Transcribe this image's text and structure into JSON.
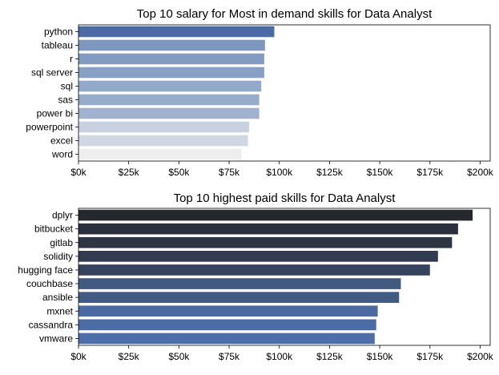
{
  "chart_data": [
    {
      "type": "bar",
      "orientation": "horizontal",
      "title": "Top 10 salary for Most in demand skills for Data Analyst",
      "xlabel": "",
      "ylabel": "",
      "xlim": [
        0,
        205000
      ],
      "xticks": [
        {
          "value": 0,
          "label": "$0k"
        },
        {
          "value": 25000,
          "label": "$25k"
        },
        {
          "value": 50000,
          "label": "$50k"
        },
        {
          "value": 75000,
          "label": "$75k"
        },
        {
          "value": 100000,
          "label": "$100k"
        },
        {
          "value": 125000,
          "label": "$125k"
        },
        {
          "value": 150000,
          "label": "$150k"
        },
        {
          "value": 175000,
          "label": "$175k"
        },
        {
          "value": 200000,
          "label": "$200k"
        }
      ],
      "grid": false,
      "categories": [
        "python",
        "tableau",
        "r",
        "sql server",
        "sql",
        "sas",
        "power bi",
        "powerpoint",
        "excel",
        "word"
      ],
      "values": [
        97500,
        92875,
        92500,
        92500,
        91000,
        90000,
        90000,
        85000,
        84392,
        81194
      ],
      "colors": [
        "#4c6aa4",
        "#7e97be",
        "#839bc1",
        "#87a0c4",
        "#93a9c9",
        "#97abca",
        "#a0b2ce",
        "#c9d1e0",
        "#d0d6e2",
        "#eeeeef"
      ]
    },
    {
      "type": "bar",
      "orientation": "horizontal",
      "title": "Top 10 highest paid skills for Data Analyst",
      "xlabel": "",
      "ylabel": "",
      "xlim": [
        0,
        205000
      ],
      "xticks": [
        {
          "value": 0,
          "label": "$0k"
        },
        {
          "value": 25000,
          "label": "$25k"
        },
        {
          "value": 50000,
          "label": "$50k"
        },
        {
          "value": 75000,
          "label": "$75k"
        },
        {
          "value": 100000,
          "label": "$100k"
        },
        {
          "value": 125000,
          "label": "$125k"
        },
        {
          "value": 150000,
          "label": "$150k"
        },
        {
          "value": 175000,
          "label": "$175k"
        },
        {
          "value": 200000,
          "label": "$200k"
        }
      ],
      "grid": false,
      "categories": [
        "dplyr",
        "bitbucket",
        "gitlab",
        "solidity",
        "hugging face",
        "couchbase",
        "ansible",
        "mxnet",
        "cassandra",
        "vmware"
      ],
      "values": [
        196250,
        189000,
        186000,
        179000,
        175000,
        160515,
        159640,
        149000,
        148250,
        147500
      ],
      "colors": [
        "#25282d",
        "#2b313c",
        "#2e3543",
        "#323b4f",
        "#37435c",
        "#425980",
        "#435b82",
        "#4b6aa2",
        "#4c6ca5",
        "#4d6ea9"
      ]
    }
  ]
}
